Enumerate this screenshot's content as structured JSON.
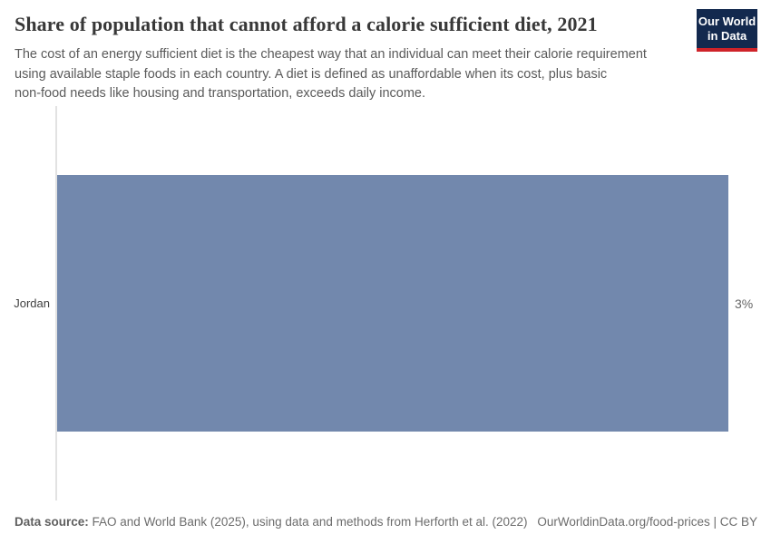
{
  "header": {
    "title": "Share of population that cannot afford a calorie sufficient diet, 2021",
    "subtitle_lines": [
      "The cost of an energy sufficient diet is the cheapest way that an individual can meet their calorie requirement",
      "using available staple foods in each country. A diet is defined as unaffordable when its cost, plus basic",
      "non-food needs like housing and transportation, exceeds daily income."
    ],
    "logo": {
      "line1": "Our World",
      "line2": "in Data"
    }
  },
  "chart_data": {
    "type": "bar",
    "orientation": "horizontal",
    "title": "Share of population that cannot afford a calorie sufficient diet, 2021",
    "year": "2021",
    "categories": [
      "Jordan"
    ],
    "values": [
      3
    ],
    "value_labels": [
      "3%"
    ],
    "xlim": [
      0,
      3
    ],
    "xlabel": "",
    "ylabel": "",
    "grid": false,
    "legend": "none",
    "bar_color": "#7288ad"
  },
  "footer": {
    "source_label": "Data source:",
    "source_text": " FAO and World Bank (2025), using data and methods from Herforth et al. (2022)",
    "attribution": "OurWorldinData.org/food-prices | CC BY"
  },
  "colors": {
    "bar": "#7288ad",
    "axis_line": "#e2e2e2",
    "title_text": "#383838",
    "subtitle_text": "#5a5a5a",
    "logo_navy": "#13294e",
    "logo_red": "#cf2329"
  }
}
